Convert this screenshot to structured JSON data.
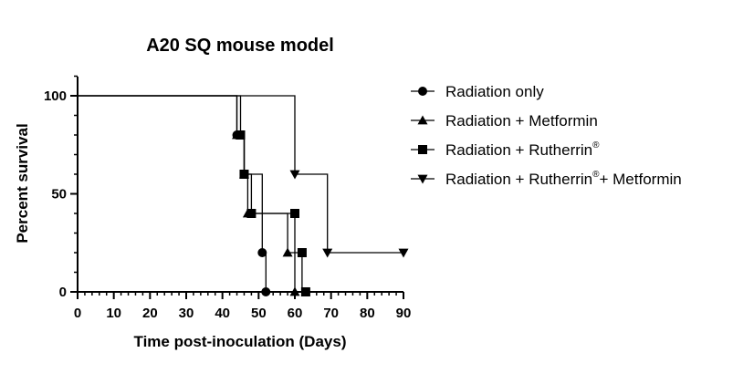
{
  "chart_data": {
    "type": "line",
    "subtype": "kaplan-meier survival",
    "title": "A20 SQ mouse model",
    "xlabel": "Time post-inoculation (Days)",
    "ylabel": "Percent survival",
    "xlim": [
      0,
      90
    ],
    "ylim": [
      0,
      100
    ],
    "x_ticks": [
      0,
      10,
      20,
      30,
      40,
      50,
      60,
      70,
      80,
      90
    ],
    "y_ticks": [
      0,
      50,
      100
    ],
    "x_minor_step": 2,
    "y_minor_step": 10,
    "grid": false,
    "legend_position": "right",
    "series": [
      {
        "name": "Radiation only",
        "name_suffix": "",
        "name_superscript": "",
        "marker": "circle",
        "steps": [
          [
            0,
            100
          ],
          [
            44,
            100
          ],
          [
            44,
            80
          ],
          [
            46,
            80
          ],
          [
            46,
            60
          ],
          [
            51,
            60
          ],
          [
            51,
            20
          ],
          [
            52,
            20
          ],
          [
            52,
            0
          ]
        ],
        "marked_points": [
          [
            44,
            80
          ],
          [
            46,
            60
          ],
          [
            51,
            20
          ],
          [
            52,
            0
          ]
        ]
      },
      {
        "name": "Radiation + Metformin",
        "name_suffix": "",
        "name_superscript": "",
        "marker": "triangle-up",
        "steps": [
          [
            0,
            100
          ],
          [
            44,
            100
          ],
          [
            44,
            80
          ],
          [
            46,
            80
          ],
          [
            46,
            60
          ],
          [
            47,
            60
          ],
          [
            47,
            40
          ],
          [
            58,
            40
          ],
          [
            58,
            20
          ],
          [
            60,
            20
          ],
          [
            60,
            0
          ]
        ],
        "marked_points": [
          [
            44,
            80
          ],
          [
            46,
            60
          ],
          [
            47,
            40
          ],
          [
            58,
            20
          ],
          [
            60,
            0
          ]
        ]
      },
      {
        "name": "Radiation + Rutherrin",
        "name_suffix": "",
        "name_superscript": "®",
        "marker": "square",
        "steps": [
          [
            0,
            100
          ],
          [
            45,
            100
          ],
          [
            45,
            80
          ],
          [
            46,
            80
          ],
          [
            46,
            60
          ],
          [
            48,
            60
          ],
          [
            48,
            40
          ],
          [
            60,
            40
          ],
          [
            60,
            20
          ],
          [
            62,
            20
          ],
          [
            62,
            0
          ],
          [
            63,
            0
          ]
        ],
        "marked_points": [
          [
            45,
            80
          ],
          [
            46,
            60
          ],
          [
            48,
            40
          ],
          [
            60,
            40
          ],
          [
            62,
            20
          ],
          [
            63,
            0
          ]
        ]
      },
      {
        "name": "Radiation + Rutherrin",
        "name_suffix": "+ Metformin",
        "name_superscript": "®",
        "marker": "triangle-down",
        "steps": [
          [
            0,
            100
          ],
          [
            60,
            100
          ],
          [
            60,
            60
          ],
          [
            69,
            60
          ],
          [
            69,
            20
          ],
          [
            90,
            20
          ]
        ],
        "marked_points": [
          [
            60,
            60
          ],
          [
            69,
            20
          ],
          [
            90,
            20
          ]
        ]
      }
    ]
  }
}
